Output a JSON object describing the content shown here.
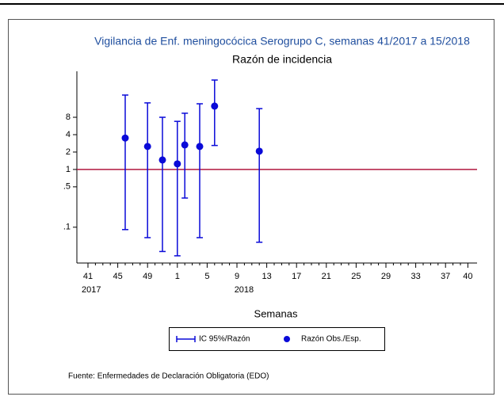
{
  "chart_data": {
    "type": "errorbar-scatter",
    "title": "Vigilancia de Enf. meningocócica Serogrupo C, semanas 41/2017 a 15/2018",
    "subtitle": "Razón de incidencia",
    "x_label": "Semanas",
    "categories": [
      "41",
      null,
      null,
      null,
      "45",
      null,
      null,
      null,
      "49",
      null,
      null,
      null,
      "1",
      null,
      null,
      null,
      "5",
      null,
      null,
      null,
      "9",
      null,
      null,
      null,
      "13",
      null,
      null,
      null,
      "17",
      null,
      null,
      null,
      "21",
      null,
      null,
      null,
      "25",
      null,
      null,
      null,
      "29",
      null,
      null,
      null,
      "33",
      null,
      null,
      null,
      "37",
      null,
      null,
      "40"
    ],
    "year_labels": [
      "2017",
      "2018"
    ],
    "series": [
      {
        "name": "Razón Obs./Esp.",
        "color": "#0a0ad8",
        "values": [
          null,
          null,
          null,
          null,
          null,
          3.5,
          null,
          null,
          2.5,
          null,
          1.46,
          null,
          1.25,
          2.66,
          null,
          2.5,
          null,
          12.5,
          null,
          null,
          null,
          null,
          null,
          2.07,
          null,
          null,
          null,
          null,
          null,
          null,
          null,
          null,
          null,
          null,
          null,
          null,
          null,
          null,
          null,
          null,
          null,
          null,
          null,
          null,
          null,
          null,
          null,
          null,
          null,
          null,
          null,
          null
        ]
      }
    ],
    "error_bars": {
      "name": "IC 95%/Razón",
      "color": "#0a0ad8",
      "lower": [
        null,
        null,
        null,
        null,
        null,
        0.091,
        null,
        null,
        0.066,
        null,
        0.038,
        null,
        0.032,
        0.32,
        null,
        0.066,
        null,
        2.6,
        null,
        null,
        null,
        null,
        null,
        0.055,
        null,
        null,
        null,
        null,
        null,
        null,
        null,
        null,
        null,
        null,
        null,
        null,
        null,
        null,
        null,
        null,
        null,
        null,
        null,
        null,
        null,
        null,
        null,
        null,
        null,
        null,
        null,
        null
      ],
      "upper": [
        null,
        null,
        null,
        null,
        null,
        19.4,
        null,
        null,
        14.2,
        null,
        8,
        null,
        6.8,
        9.4,
        null,
        13.7,
        null,
        35.3,
        null,
        null,
        null,
        null,
        null,
        11.3,
        null,
        null,
        null,
        null,
        null,
        null,
        null,
        null,
        null,
        null,
        null,
        null,
        null,
        null,
        null,
        null,
        null,
        null,
        null,
        null,
        null,
        null,
        null,
        null,
        null,
        null,
        null,
        null
      ]
    },
    "reference_line": 1,
    "reference_color": "#b0173f",
    "log_y": true,
    "ylim": [
      0.024,
      50
    ],
    "yticks": [
      {
        "value": 0.1,
        "label": ".1"
      },
      {
        "value": 0.5,
        "label": ".5"
      },
      1,
      2,
      4,
      8
    ],
    "source": "Fuente: Enfermedades de Declaración Obligatoria (EDO)"
  }
}
